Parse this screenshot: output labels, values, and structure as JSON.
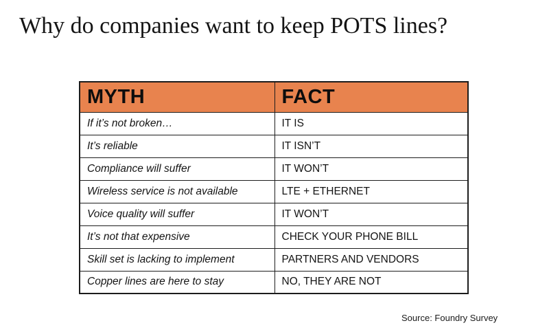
{
  "slide": {
    "title": "Why do companies want to keep POTS lines?",
    "source": "Source: Foundry Survey"
  },
  "table": {
    "headers": {
      "myth": "MYTH",
      "fact": "FACT"
    },
    "rows": [
      {
        "myth": "If it’s not broken…",
        "fact": "IT IS"
      },
      {
        "myth": "It’s reliable",
        "fact": "IT ISN’T"
      },
      {
        "myth": "Compliance will suffer",
        "fact": "IT WON’T"
      },
      {
        "myth": "Wireless service is not available",
        "fact": "LTE + ETHERNET"
      },
      {
        "myth": "Voice quality will suffer",
        "fact": "IT WON’T"
      },
      {
        "myth": "It’s not that expensive",
        "fact": "CHECK YOUR PHONE BILL"
      },
      {
        "myth": "Skill set is lacking to implement",
        "fact": "PARTNERS AND VENDORS"
      },
      {
        "myth": "Copper lines are here to stay",
        "fact": "NO, THEY ARE NOT"
      }
    ],
    "colors": {
      "header_bg": "#E8834E",
      "border": "#1c1c1c",
      "text": "#121212"
    }
  }
}
